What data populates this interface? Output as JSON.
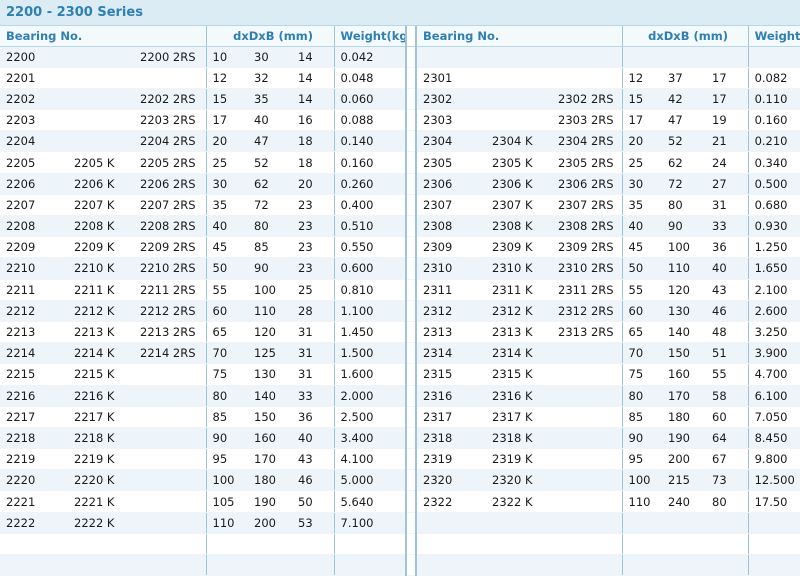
{
  "title": "2200 - 2300 Series",
  "headers": {
    "bearing_no": "Bearing No.",
    "dims": "dxDxB (mm)",
    "weight": "Weight(kg)"
  },
  "left_rows": [
    [
      "2200",
      "",
      "2200 2RS",
      "10",
      "30",
      "14",
      "0.042"
    ],
    [
      "2201",
      "",
      "",
      "12",
      "32",
      "14",
      "0.048"
    ],
    [
      "2202",
      "",
      "2202 2RS",
      "15",
      "35",
      "14",
      "0.060"
    ],
    [
      "2203",
      "",
      "2203 2RS",
      "17",
      "40",
      "16",
      "0.088"
    ],
    [
      "2204",
      "",
      "2204 2RS",
      "20",
      "47",
      "18",
      "0.140"
    ],
    [
      "2205",
      "2205 K",
      "2205 2RS",
      "25",
      "52",
      "18",
      "0.160"
    ],
    [
      "2206",
      "2206 K",
      "2206 2RS",
      "30",
      "62",
      "20",
      "0.260"
    ],
    [
      "2207",
      "2207 K",
      "2207 2RS",
      "35",
      "72",
      "23",
      "0.400"
    ],
    [
      "2208",
      "2208 K",
      "2208 2RS",
      "40",
      "80",
      "23",
      "0.510"
    ],
    [
      "2209",
      "2209 K",
      "2209 2RS",
      "45",
      "85",
      "23",
      "0.550"
    ],
    [
      "2210",
      "2210 K",
      "2210 2RS",
      "50",
      "90",
      "23",
      "0.600"
    ],
    [
      "2211",
      "2211 K",
      "2211 2RS",
      "55",
      "100",
      "25",
      "0.810"
    ],
    [
      "2212",
      "2212 K",
      "2212 2RS",
      "60",
      "110",
      "28",
      "1.100"
    ],
    [
      "2213",
      "2213 K",
      "2213 2RS",
      "65",
      "120",
      "31",
      "1.450"
    ],
    [
      "2214",
      "2214 K",
      "2214 2RS",
      "70",
      "125",
      "31",
      "1.500"
    ],
    [
      "2215",
      "2215 K",
      "",
      "75",
      "130",
      "31",
      "1.600"
    ],
    [
      "2216",
      "2216 K",
      "",
      "80",
      "140",
      "33",
      "2.000"
    ],
    [
      "2217",
      "2217 K",
      "",
      "85",
      "150",
      "36",
      "2.500"
    ],
    [
      "2218",
      "2218 K",
      "",
      "90",
      "160",
      "40",
      "3.400"
    ],
    [
      "2219",
      "2219 K",
      "",
      "95",
      "170",
      "43",
      "4.100"
    ],
    [
      "2220",
      "2220 K",
      "",
      "100",
      "180",
      "46",
      "5.000"
    ],
    [
      "2221",
      "2221 K",
      "",
      "105",
      "190",
      "50",
      "5.640"
    ],
    [
      "2222",
      "2222 K",
      "",
      "110",
      "200",
      "53",
      "7.100"
    ],
    [
      "",
      "",
      "",
      "",
      "",
      "",
      ""
    ],
    [
      "",
      "",
      "",
      "",
      "",
      "",
      ""
    ]
  ],
  "right_rows": [
    [
      "",
      "",
      "",
      "",
      "",
      "",
      ""
    ],
    [
      "2301",
      "",
      "",
      "12",
      "37",
      "17",
      "0.082"
    ],
    [
      "2302",
      "",
      "2302 2RS",
      "15",
      "42",
      "17",
      "0.110"
    ],
    [
      "2303",
      "",
      "2303 2RS",
      "17",
      "47",
      "19",
      "0.160"
    ],
    [
      "2304",
      "2304 K",
      "2304 2RS",
      "20",
      "52",
      "21",
      "0.210"
    ],
    [
      "2305",
      "2305 K",
      "2305 2RS",
      "25",
      "62",
      "24",
      "0.340"
    ],
    [
      "2306",
      "2306 K",
      "2306 2RS",
      "30",
      "72",
      "27",
      "0.500"
    ],
    [
      "2307",
      "2307 K",
      "2307 2RS",
      "35",
      "80",
      "31",
      "0.680"
    ],
    [
      "2308",
      "2308 K",
      "2308 2RS",
      "40",
      "90",
      "33",
      "0.930"
    ],
    [
      "2309",
      "2309 K",
      "2309 2RS",
      "45",
      "100",
      "36",
      "1.250"
    ],
    [
      "2310",
      "2310 K",
      "2310 2RS",
      "50",
      "110",
      "40",
      "1.650"
    ],
    [
      "2311",
      "2311 K",
      "2311 2RS",
      "55",
      "120",
      "43",
      "2.100"
    ],
    [
      "2312",
      "2312 K",
      "2312 2RS",
      "60",
      "130",
      "46",
      "2.600"
    ],
    [
      "2313",
      "2313 K",
      "2313 2RS",
      "65",
      "140",
      "48",
      "3.250"
    ],
    [
      "2314",
      "2314 K",
      "",
      "70",
      "150",
      "51",
      "3.900"
    ],
    [
      "2315",
      "2315 K",
      "",
      "75",
      "160",
      "55",
      "4.700"
    ],
    [
      "2316",
      "2316 K",
      "",
      "80",
      "170",
      "58",
      "6.100"
    ],
    [
      "2317",
      "2317 K",
      "",
      "85",
      "180",
      "60",
      "7.050"
    ],
    [
      "2318",
      "2318 K",
      "",
      "90",
      "190",
      "64",
      "8.450"
    ],
    [
      "2319",
      "2319 K",
      "",
      "95",
      "200",
      "67",
      "9.800"
    ],
    [
      "2320",
      "2320 K",
      "",
      "100",
      "215",
      "73",
      "12.500"
    ],
    [
      "2322",
      "2322 K",
      "",
      "110",
      "240",
      "80",
      "17.50"
    ],
    [
      "",
      "",
      "",
      "",
      "",
      "",
      ""
    ],
    [
      "",
      "",
      "",
      "",
      "",
      "",
      ""
    ],
    [
      "",
      "",
      "",
      "",
      "",
      "",
      ""
    ]
  ]
}
